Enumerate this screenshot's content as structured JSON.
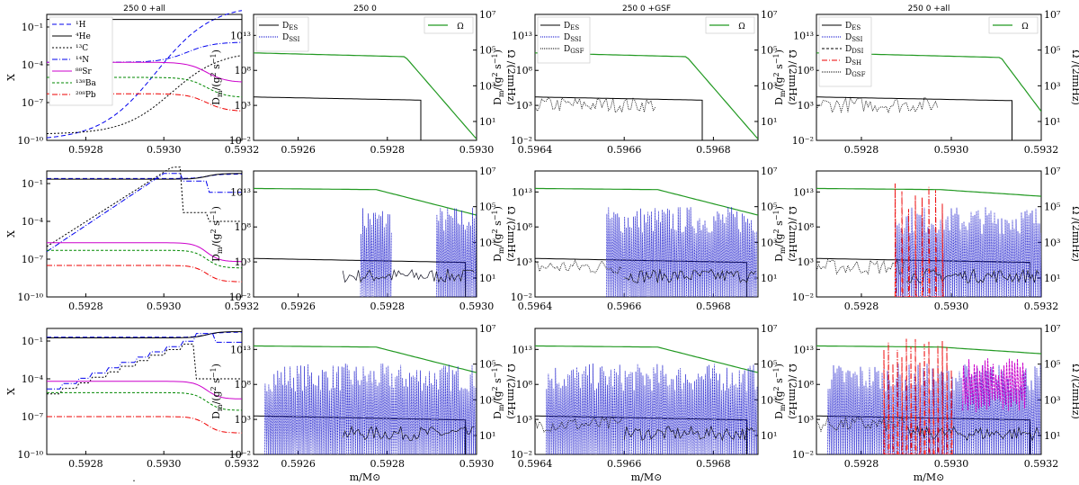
{
  "figure": {
    "xlabel": "m/M⊙",
    "ylabel_X": "X",
    "ylabel_X_sub": "i",
    "ylabel_D": "D",
    "ylabel_D_sub": "m",
    "ylabel_D_unit": "/(g",
    "ylabel_D_unit2": "2",
    "ylabel_D_unit3": " s",
    "ylabel_D_unit4": "−1",
    "ylabel_D_unit5": ")",
    "ylabel_Omega": "Ω /(2πnHz)",
    "column_titles": [
      "250 0 +all",
      "250 0",
      "250 0 +GSF",
      "250 0 +all"
    ],
    "stray_mark": "."
  },
  "chart_data": [
    {
      "type": "line",
      "panel": "abundances",
      "title": "250 0 +all",
      "rows": 3,
      "xlim": [
        0.5927,
        0.5932
      ],
      "xticks": [
        "0.5928",
        "0.5930",
        "0.5932"
      ],
      "ylim_log10": [
        -10,
        0
      ],
      "yticks": [
        "10⁻¹⁰",
        "10⁻⁷",
        "10⁻⁴",
        "10⁻¹"
      ],
      "legend": [
        {
          "label": "¹H",
          "color": "#0000ee",
          "dash": "5,3"
        },
        {
          "label": "⁴He",
          "color": "#000000",
          "dash": ""
        },
        {
          "label": "¹³C",
          "color": "#000000",
          "dash": "2,2"
        },
        {
          "label": "¹⁴N",
          "color": "#0000ee",
          "dash": "6,2,1,2"
        },
        {
          "label": "⁸⁸Sr",
          "color": "#cc00cc",
          "dash": ""
        },
        {
          "label": "¹³⁸Ba",
          "color": "#008800",
          "dash": "3,2"
        },
        {
          "label": "²⁰⁸Pb",
          "color": "#ee0000",
          "dash": "6,2,1,2"
        }
      ]
    },
    {
      "type": "line",
      "panel": "diffusion",
      "title": "250 0",
      "xlim": [
        0.5925,
        0.593
      ],
      "xticks": [
        "0.5926",
        "0.5928",
        "0.5930"
      ],
      "ylim_log10": [
        -2,
        16
      ],
      "yticks": [
        "10⁻²",
        "10³",
        "10⁸",
        "10¹³"
      ],
      "y2ticks": [
        "10¹",
        "10³",
        "10⁵",
        "10⁷"
      ],
      "legend": [
        {
          "label": "D",
          "sub": "ES",
          "color": "#000000",
          "dash": ""
        },
        {
          "label": "D",
          "sub": "SSI",
          "color": "#0000cc",
          "dash": "1,1"
        }
      ],
      "omega_legend": "Ω"
    },
    {
      "type": "line",
      "panel": "diffusion",
      "title": "250 0 +GSF",
      "xlim": [
        0.5964,
        0.5969
      ],
      "xticks": [
        "0.5964",
        "0.5966",
        "0.5968"
      ],
      "ylim_log10": [
        -2,
        16
      ],
      "yticks": [
        "10⁻²",
        "10³",
        "10⁸",
        "10¹³"
      ],
      "y2ticks": [
        "10¹",
        "10³",
        "10⁵",
        "10⁷"
      ],
      "legend": [
        {
          "label": "D",
          "sub": "ES",
          "color": "#000000",
          "dash": ""
        },
        {
          "label": "D",
          "sub": "SSI",
          "color": "#0000cc",
          "dash": "1,1"
        },
        {
          "label": "D",
          "sub": "GSF",
          "color": "#000000",
          "dash": "1,1"
        }
      ],
      "omega_legend": "Ω"
    },
    {
      "type": "line",
      "panel": "diffusion",
      "title": "250 0 +all",
      "xlim": [
        0.5927,
        0.5932
      ],
      "xticks": [
        "0.5928",
        "0.5930",
        "0.5932"
      ],
      "ylim_log10": [
        -2,
        16
      ],
      "yticks": [
        "10⁻²",
        "10³",
        "10⁸",
        "10¹³"
      ],
      "y2ticks": [
        "10¹",
        "10³",
        "10⁵",
        "10⁷"
      ],
      "legend": [
        {
          "label": "D",
          "sub": "ES",
          "color": "#000000",
          "dash": ""
        },
        {
          "label": "D",
          "sub": "SSI",
          "color": "#0000cc",
          "dash": "1,1"
        },
        {
          "label": "D",
          "sub": "DSI",
          "color": "#000000",
          "dash": "3,2"
        },
        {
          "label": "D",
          "sub": "SH",
          "color": "#ee0000",
          "dash": "6,2,1,2"
        },
        {
          "label": "D",
          "sub": "GSF",
          "color": "#000000",
          "dash": "1,1"
        }
      ],
      "omega_legend": "Ω"
    }
  ]
}
